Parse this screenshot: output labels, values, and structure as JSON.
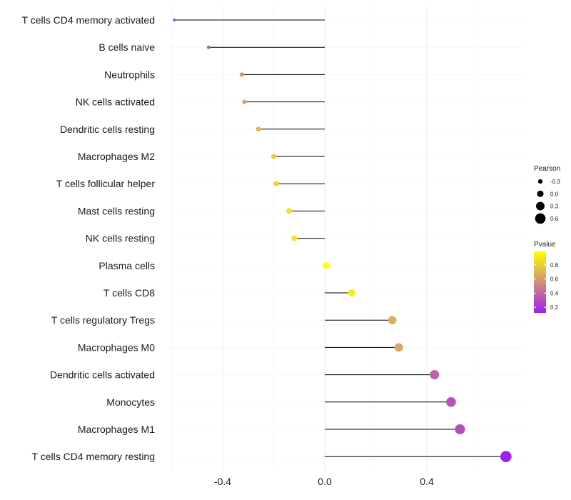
{
  "chart_data": {
    "type": "lollipop",
    "title": "",
    "xlabel": "",
    "ylabel": "",
    "xlim": [
      -0.6,
      0.75
    ],
    "xticks": [
      -0.4,
      0.0,
      0.4
    ],
    "xtick_labels": [
      "-0.4",
      "0.0",
      "0.4"
    ],
    "categories": [
      "T cells CD4 memory activated",
      "B cells naive",
      "Neutrophils",
      "NK cells activated",
      "Dendritic cells resting",
      "Macrophages M2",
      "T cells follicular helper",
      "Mast cells resting",
      "NK cells resting",
      "Plasma cells",
      "T cells CD8",
      "T cells regulatory  Tregs ",
      "Macrophages M0",
      "Dendritic cells activated",
      "Monocytes",
      "Macrophages M1",
      "T cells CD4 memory resting"
    ],
    "pearson": [
      -0.59,
      -0.455,
      -0.325,
      -0.315,
      -0.26,
      -0.2,
      -0.19,
      -0.14,
      -0.12,
      0.005,
      0.105,
      0.265,
      0.29,
      0.43,
      0.495,
      0.53,
      0.71
    ],
    "pvalue": [
      0.15,
      0.35,
      0.6,
      0.62,
      0.7,
      0.78,
      0.82,
      0.88,
      0.9,
      0.99,
      0.92,
      0.68,
      0.64,
      0.38,
      0.32,
      0.3,
      0.12
    ],
    "legend_size": {
      "title": "Pearson",
      "entries": [
        {
          "label": "-0.3",
          "value": -0.3
        },
        {
          "label": "0.0",
          "value": 0.0
        },
        {
          "label": "0.3",
          "value": 0.3
        },
        {
          "label": "0.6",
          "value": 0.6
        }
      ]
    },
    "legend_color": {
      "title": "Pvalue",
      "ticks": [
        {
          "label": "0.8",
          "value": 0.8
        },
        {
          "label": "0.6",
          "value": 0.6
        },
        {
          "label": "0.4",
          "value": 0.4
        },
        {
          "label": "0.2",
          "value": 0.2
        }
      ],
      "range": [
        0.12,
        0.99
      ],
      "low_color": "#a020f0",
      "high_color": "#ffff00"
    },
    "grid": true,
    "legend_position": "right"
  }
}
